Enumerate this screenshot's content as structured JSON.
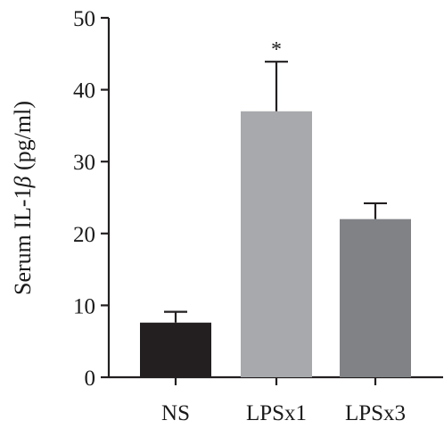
{
  "chart_data": {
    "type": "bar",
    "categories": [
      "NS",
      "LPSx1",
      "LPSx3"
    ],
    "values": [
      7.6,
      37.0,
      22.0
    ],
    "error_upper": [
      9.1,
      43.9,
      24.2
    ],
    "colors": [
      "#231f20",
      "#a7a9ac",
      "#808285"
    ],
    "annotations": [
      "",
      "*",
      ""
    ],
    "ylabel_prefix": "Serum IL-1",
    "ylabel_symbol": "β",
    "ylabel_suffix": " (pg/ml)",
    "ylim": [
      0,
      50
    ],
    "yticks": [
      "0",
      "10",
      "20",
      "30",
      "40",
      "50"
    ],
    "grid": false,
    "legend": "none"
  }
}
